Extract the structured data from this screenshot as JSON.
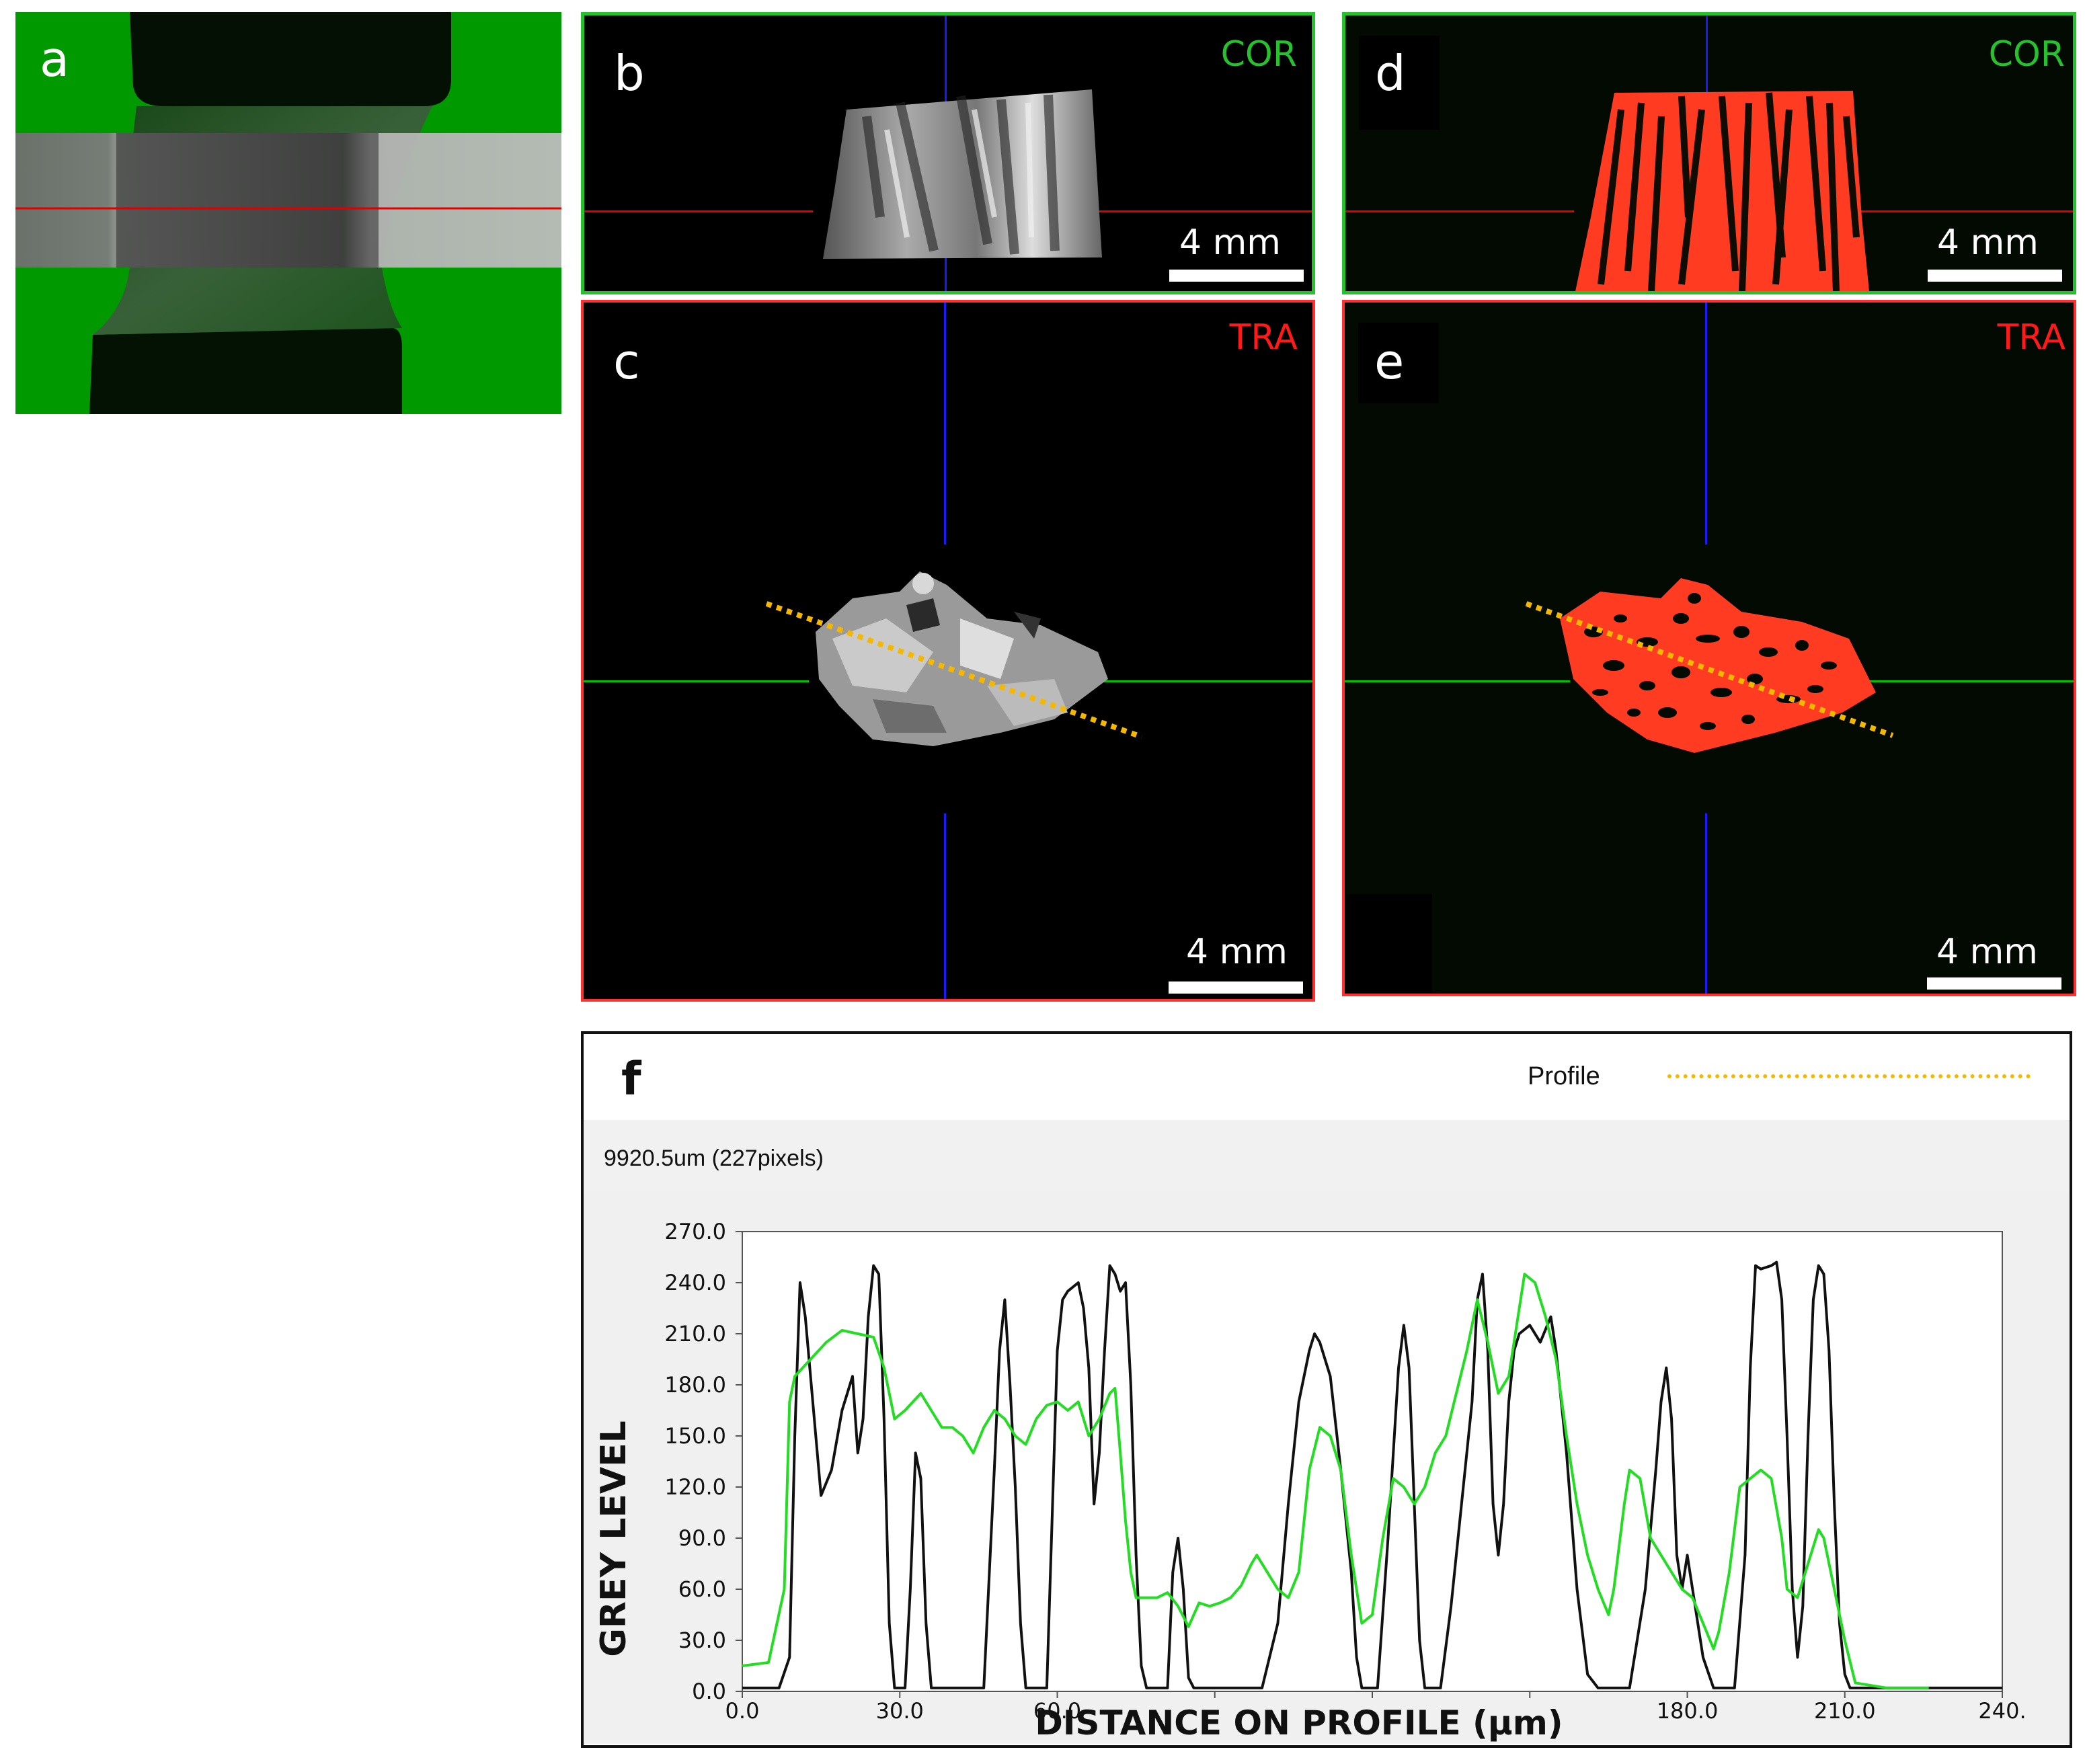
{
  "panels": {
    "a": {
      "letter": "a"
    },
    "b": {
      "letter": "b",
      "view": "COR",
      "scale": "4 mm"
    },
    "c": {
      "letter": "c",
      "view": "TRA",
      "scale": "4 mm"
    },
    "d": {
      "letter": "d",
      "view": "COR",
      "scale": "4 mm"
    },
    "e": {
      "letter": "e",
      "view": "TRA",
      "scale": "4 mm"
    }
  },
  "colors": {
    "green_bg": "#009a00",
    "cor_tag": "#26c12c",
    "tra_tag": "#ff1a1a",
    "seg_red": "#ff3b22",
    "profile_line": "#f5b800",
    "cross_blue": "#1a1aff",
    "cross_red": "#e00000",
    "cross_green": "#00c000",
    "grey_series": "#111111",
    "seg_series": "#22dd22"
  },
  "profile": {
    "letter": "f",
    "legend_label": "Profile",
    "length_readout": "9920.5um (227pixels)",
    "ylabel": "GREY LEVEL",
    "xlabel": "DISTANCE ON PROFILE (µm)"
  },
  "chart_data": {
    "type": "line",
    "title": "",
    "xlabel": "DISTANCE ON PROFILE (µm)",
    "ylabel": "GREY LEVEL",
    "xlim": [
      0,
      240
    ],
    "ylim": [
      0,
      270
    ],
    "x_ticks": [
      "0.0",
      "30.0",
      "60.0",
      "",
      "",
      "",
      "180.0",
      "210.0",
      "240."
    ],
    "y_ticks": [
      "0.0",
      "30.0",
      "60.0",
      "90.0",
      "120.0",
      "150.0",
      "180.0",
      "210.0",
      "240.0",
      "270.0"
    ],
    "legend": [
      "Profile"
    ],
    "series": [
      {
        "color": "#111111",
        "points": [
          [
            0,
            2
          ],
          [
            7,
            2
          ],
          [
            9,
            20
          ],
          [
            10,
            150
          ],
          [
            11,
            240
          ],
          [
            12,
            220
          ],
          [
            14,
            150
          ],
          [
            15,
            115
          ],
          [
            17,
            130
          ],
          [
            19,
            165
          ],
          [
            21,
            185
          ],
          [
            22,
            140
          ],
          [
            23,
            160
          ],
          [
            24,
            220
          ],
          [
            25,
            250
          ],
          [
            26,
            245
          ],
          [
            27,
            160
          ],
          [
            28,
            40
          ],
          [
            29,
            2
          ],
          [
            31,
            2
          ],
          [
            32,
            60
          ],
          [
            33,
            140
          ],
          [
            34,
            125
          ],
          [
            35,
            40
          ],
          [
            36,
            2
          ],
          [
            46,
            2
          ],
          [
            48,
            130
          ],
          [
            49,
            200
          ],
          [
            50,
            230
          ],
          [
            51,
            180
          ],
          [
            52,
            120
          ],
          [
            53,
            40
          ],
          [
            54,
            2
          ],
          [
            58,
            2
          ],
          [
            59,
            100
          ],
          [
            60,
            200
          ],
          [
            61,
            230
          ],
          [
            62,
            235
          ],
          [
            64,
            240
          ],
          [
            65,
            225
          ],
          [
            66,
            190
          ],
          [
            67,
            110
          ],
          [
            68,
            140
          ],
          [
            69,
            200
          ],
          [
            70,
            250
          ],
          [
            71,
            245
          ],
          [
            72,
            235
          ],
          [
            73,
            240
          ],
          [
            74,
            180
          ],
          [
            75,
            80
          ],
          [
            76,
            15
          ],
          [
            77,
            2
          ],
          [
            81,
            2
          ],
          [
            82,
            70
          ],
          [
            83,
            90
          ],
          [
            84,
            60
          ],
          [
            85,
            8
          ],
          [
            86,
            2
          ],
          [
            99,
            2
          ],
          [
            102,
            40
          ],
          [
            104,
            110
          ],
          [
            106,
            170
          ],
          [
            108,
            200
          ],
          [
            109,
            210
          ],
          [
            110,
            205
          ],
          [
            112,
            185
          ],
          [
            114,
            130
          ],
          [
            116,
            70
          ],
          [
            117,
            20
          ],
          [
            118,
            2
          ],
          [
            121,
            2
          ],
          [
            123,
            90
          ],
          [
            125,
            190
          ],
          [
            126,
            215
          ],
          [
            127,
            190
          ],
          [
            128,
            110
          ],
          [
            129,
            30
          ],
          [
            130,
            2
          ],
          [
            133,
            2
          ],
          [
            135,
            50
          ],
          [
            137,
            110
          ],
          [
            139,
            170
          ],
          [
            140,
            230
          ],
          [
            141,
            245
          ],
          [
            142,
            200
          ],
          [
            143,
            110
          ],
          [
            144,
            80
          ],
          [
            145,
            110
          ],
          [
            146,
            170
          ],
          [
            147,
            200
          ],
          [
            148,
            210
          ],
          [
            150,
            215
          ],
          [
            152,
            205
          ],
          [
            154,
            220
          ],
          [
            155,
            200
          ],
          [
            157,
            140
          ],
          [
            159,
            60
          ],
          [
            161,
            10
          ],
          [
            163,
            2
          ],
          [
            169,
            2
          ],
          [
            172,
            60
          ],
          [
            174,
            130
          ],
          [
            175,
            170
          ],
          [
            176,
            190
          ],
          [
            177,
            160
          ],
          [
            178,
            80
          ],
          [
            179,
            60
          ],
          [
            180,
            80
          ],
          [
            181,
            60
          ],
          [
            183,
            20
          ],
          [
            185,
            2
          ],
          [
            189,
            2
          ],
          [
            191,
            80
          ],
          [
            192,
            190
          ],
          [
            193,
            250
          ],
          [
            194,
            248
          ],
          [
            196,
            250
          ],
          [
            197,
            252
          ],
          [
            198,
            230
          ],
          [
            199,
            150
          ],
          [
            200,
            60
          ],
          [
            201,
            20
          ],
          [
            202,
            50
          ],
          [
            203,
            150
          ],
          [
            204,
            230
          ],
          [
            205,
            250
          ],
          [
            206,
            245
          ],
          [
            207,
            200
          ],
          [
            208,
            110
          ],
          [
            209,
            40
          ],
          [
            210,
            10
          ],
          [
            211,
            2
          ],
          [
            240,
            2
          ]
        ]
      },
      {
        "color": "#22dd22",
        "points": [
          [
            0,
            15
          ],
          [
            5,
            17
          ],
          [
            8,
            60
          ],
          [
            9,
            170
          ],
          [
            10,
            185
          ],
          [
            13,
            195
          ],
          [
            16,
            205
          ],
          [
            19,
            212
          ],
          [
            22,
            210
          ],
          [
            25,
            208
          ],
          [
            27,
            190
          ],
          [
            29,
            160
          ],
          [
            31,
            165
          ],
          [
            34,
            175
          ],
          [
            36,
            165
          ],
          [
            38,
            155
          ],
          [
            40,
            155
          ],
          [
            42,
            150
          ],
          [
            44,
            140
          ],
          [
            46,
            155
          ],
          [
            48,
            165
          ],
          [
            50,
            160
          ],
          [
            52,
            150
          ],
          [
            54,
            145
          ],
          [
            56,
            160
          ],
          [
            58,
            168
          ],
          [
            60,
            170
          ],
          [
            62,
            165
          ],
          [
            64,
            170
          ],
          [
            66,
            150
          ],
          [
            68,
            160
          ],
          [
            70,
            175
          ],
          [
            71,
            178
          ],
          [
            72,
            140
          ],
          [
            73,
            100
          ],
          [
            74,
            70
          ],
          [
            75,
            55
          ],
          [
            77,
            55
          ],
          [
            79,
            55
          ],
          [
            81,
            58
          ],
          [
            83,
            50
          ],
          [
            85,
            38
          ],
          [
            87,
            52
          ],
          [
            89,
            50
          ],
          [
            91,
            52
          ],
          [
            93,
            55
          ],
          [
            95,
            62
          ],
          [
            97,
            75
          ],
          [
            98,
            80
          ],
          [
            100,
            70
          ],
          [
            102,
            60
          ],
          [
            104,
            55
          ],
          [
            106,
            70
          ],
          [
            108,
            130
          ],
          [
            110,
            155
          ],
          [
            112,
            150
          ],
          [
            114,
            130
          ],
          [
            116,
            80
          ],
          [
            118,
            40
          ],
          [
            120,
            45
          ],
          [
            122,
            90
          ],
          [
            124,
            125
          ],
          [
            126,
            120
          ],
          [
            128,
            110
          ],
          [
            130,
            120
          ],
          [
            132,
            140
          ],
          [
            134,
            150
          ],
          [
            136,
            175
          ],
          [
            138,
            200
          ],
          [
            140,
            230
          ],
          [
            142,
            205
          ],
          [
            144,
            175
          ],
          [
            146,
            185
          ],
          [
            148,
            225
          ],
          [
            149,
            245
          ],
          [
            151,
            240
          ],
          [
            153,
            220
          ],
          [
            155,
            195
          ],
          [
            157,
            150
          ],
          [
            159,
            110
          ],
          [
            161,
            80
          ],
          [
            163,
            60
          ],
          [
            165,
            45
          ],
          [
            166,
            60
          ],
          [
            167,
            85
          ],
          [
            168,
            110
          ],
          [
            169,
            130
          ],
          [
            171,
            125
          ],
          [
            173,
            90
          ],
          [
            175,
            80
          ],
          [
            177,
            70
          ],
          [
            179,
            60
          ],
          [
            181,
            55
          ],
          [
            183,
            40
          ],
          [
            185,
            25
          ],
          [
            186,
            35
          ],
          [
            188,
            70
          ],
          [
            190,
            120
          ],
          [
            192,
            125
          ],
          [
            194,
            130
          ],
          [
            196,
            125
          ],
          [
            198,
            90
          ],
          [
            199,
            60
          ],
          [
            201,
            55
          ],
          [
            203,
            75
          ],
          [
            205,
            95
          ],
          [
            206,
            90
          ],
          [
            208,
            60
          ],
          [
            210,
            30
          ],
          [
            212,
            5
          ],
          [
            218,
            2
          ],
          [
            226,
            2
          ]
        ]
      }
    ]
  }
}
